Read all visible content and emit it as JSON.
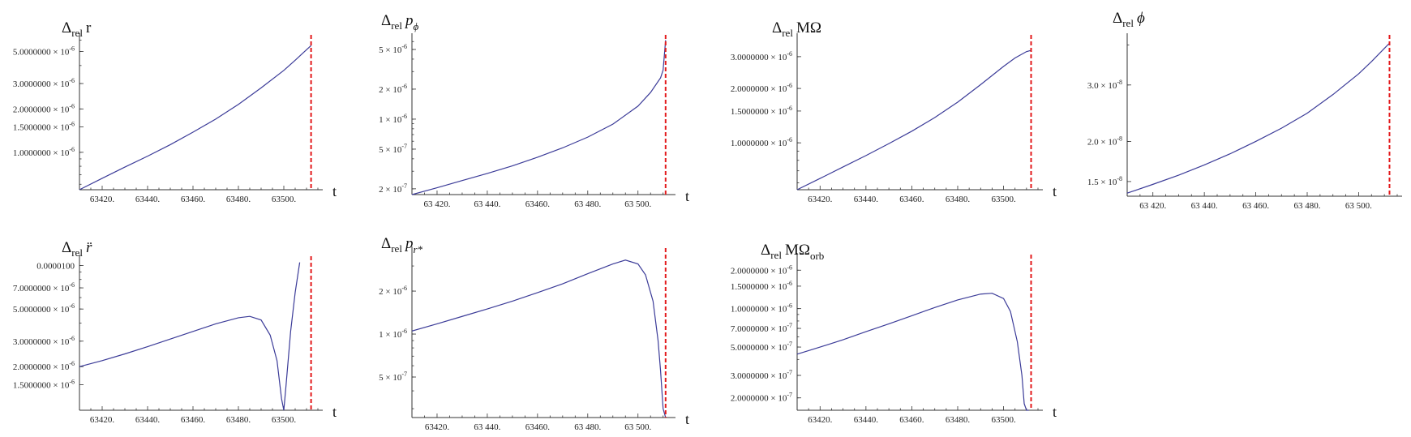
{
  "figure": {
    "description": "relative difference panels vs time"
  },
  "colors": {
    "curve": "#3b3b98",
    "separatrix": "#e31a1c",
    "axis": "#333333"
  },
  "chart_data": [
    {
      "id": "r",
      "type": "line",
      "scale": "log",
      "title": {
        "prefix": "Δ",
        "sub": "rel",
        "var": "r",
        "var_italic": false,
        "var_sub": ""
      },
      "xlabel": "t",
      "xlim": [
        63410,
        63515
      ],
      "vline_x": 63512,
      "ylim": [
        5.5e-07,
        6.2e-06
      ],
      "x_ticks": [
        63420,
        63440,
        63460,
        63480,
        63500
      ],
      "x_tick_labels": [
        "63420.",
        "63440.",
        "63460.",
        "63480.",
        "63500."
      ],
      "y_ticks": [
        {
          "v": 1e-06,
          "mant": "1.0000000",
          "exp": "-6"
        },
        {
          "v": 1.5e-06,
          "mant": "1.5000000",
          "exp": "-6"
        },
        {
          "v": 2e-06,
          "mant": "2.0000000",
          "exp": "-6"
        },
        {
          "v": 3e-06,
          "mant": "3.0000000",
          "exp": "-6"
        },
        {
          "v": 5e-06,
          "mant": "5.0000000",
          "exp": "-6"
        }
      ],
      "series": [
        {
          "name": "Δrel r",
          "x": [
            63410,
            63420,
            63430,
            63440,
            63450,
            63460,
            63470,
            63480,
            63490,
            63500,
            63505,
            63510,
            63512
          ],
          "y": [
            5.5e-07,
            6.6e-07,
            7.9e-07,
            9.4e-07,
            1.13e-06,
            1.38e-06,
            1.7e-06,
            2.15e-06,
            2.8e-06,
            3.7e-06,
            4.35e-06,
            5.15e-06,
            5.5e-06
          ]
        }
      ]
    },
    {
      "id": "pphi",
      "type": "line",
      "scale": "log",
      "title": {
        "prefix": "Δ",
        "sub": "rel",
        "var": "p",
        "var_italic": true,
        "var_sub": "ϕ"
      },
      "xlabel": "t",
      "xlim": [
        63410,
        63513
      ],
      "vline_x": 63511,
      "ylim": [
        1.75e-07,
        6.5e-06
      ],
      "x_ticks": [
        63420,
        63440,
        63460,
        63480,
        63500
      ],
      "x_tick_labels": [
        "63 420.",
        "63 440.",
        "63460.",
        "63 480.",
        "63 500."
      ],
      "y_ticks": [
        {
          "v": 2e-07,
          "mant": "2",
          "exp": "-7"
        },
        {
          "v": 5e-07,
          "mant": "5",
          "exp": "-7"
        },
        {
          "v": 1e-06,
          "mant": "1",
          "exp": "-6"
        },
        {
          "v": 2e-06,
          "mant": "2",
          "exp": "-6"
        },
        {
          "v": 5e-06,
          "mant": "5",
          "exp": "-6"
        }
      ],
      "series": [
        {
          "name": "Δrel pϕ",
          "x": [
            63410,
            63420,
            63430,
            63440,
            63450,
            63460,
            63470,
            63480,
            63490,
            63500,
            63505,
            63509,
            63510,
            63511
          ],
          "y": [
            1.75e-07,
            2.05e-07,
            2.42e-07,
            2.85e-07,
            3.4e-07,
            4.15e-07,
            5.15e-07,
            6.6e-07,
            8.9e-07,
            1.35e-06,
            1.85e-06,
            2.6e-06,
            3.1e-06,
            6.2e-06
          ]
        }
      ]
    },
    {
      "id": "momega",
      "type": "line",
      "scale": "log",
      "title": {
        "prefix": "Δ",
        "sub": "rel",
        "var": "MΩ",
        "var_italic": false,
        "var_sub": ""
      },
      "xlabel": "t",
      "xlim": [
        63410,
        63515
      ],
      "vline_x": 63512,
      "ylim": [
        5.5e-07,
        3.8e-06
      ],
      "x_ticks": [
        63420,
        63440,
        63460,
        63480,
        63500
      ],
      "x_tick_labels": [
        "63420.",
        "63440.",
        "63460.",
        "63480.",
        "63500."
      ],
      "y_ticks": [
        {
          "v": 1e-06,
          "mant": "1.0000000",
          "exp": "-6"
        },
        {
          "v": 1.5e-06,
          "mant": "1.5000000",
          "exp": "-6"
        },
        {
          "v": 2e-06,
          "mant": "2.0000000",
          "exp": "-6"
        },
        {
          "v": 3e-06,
          "mant": "3.0000000",
          "exp": "-6"
        }
      ],
      "series": [
        {
          "name": "Δrel MΩ",
          "x": [
            63410,
            63420,
            63430,
            63440,
            63450,
            63460,
            63470,
            63480,
            63490,
            63500,
            63505,
            63510,
            63512
          ],
          "y": [
            5.5e-07,
            6.35e-07,
            7.35e-07,
            8.5e-07,
            9.9e-07,
            1.16e-06,
            1.38e-06,
            1.68e-06,
            2.1e-06,
            2.65e-06,
            2.95e-06,
            3.2e-06,
            3.25e-06
          ]
        }
      ]
    },
    {
      "id": "phi",
      "type": "line",
      "scale": "log",
      "title": {
        "prefix": "Δ",
        "sub": "rel",
        "var": "ϕ",
        "var_italic": true,
        "var_sub": ""
      },
      "xlabel": "t",
      "xlim": [
        63410,
        63515
      ],
      "vline_x": 63512,
      "ylim": [
        1.35e-08,
        4.2e-08
      ],
      "x_ticks": [
        63420,
        63440,
        63460,
        63480,
        63500
      ],
      "x_tick_labels": [
        "63 420.",
        "63 440.",
        "63 460.",
        "63 480.",
        "63 500."
      ],
      "y_ticks": [
        {
          "v": 1.5e-08,
          "mant": "1.5",
          "exp": "-8"
        },
        {
          "v": 2e-08,
          "mant": "2.0",
          "exp": "-8"
        },
        {
          "v": 3e-08,
          "mant": "3.0",
          "exp": "-8"
        }
      ],
      "series": [
        {
          "name": "Δrel ϕ",
          "x": [
            63410,
            63420,
            63430,
            63440,
            63450,
            63460,
            63470,
            63480,
            63490,
            63500,
            63505,
            63510,
            63512
          ],
          "y": [
            1.38e-08,
            1.47e-08,
            1.57e-08,
            1.69e-08,
            1.83e-08,
            2e-08,
            2.2e-08,
            2.45e-08,
            2.8e-08,
            3.25e-08,
            3.55e-08,
            3.9e-08,
            4.05e-08
          ]
        }
      ]
    },
    {
      "id": "rddot",
      "type": "line",
      "scale": "log",
      "title": {
        "prefix": "Δ",
        "sub": "rel",
        "var": "r̈",
        "var_italic": true,
        "var_sub": ""
      },
      "xlabel": "t",
      "xlim": [
        63410,
        63515
      ],
      "vline_x": 63512,
      "ylim": [
        1e-06,
        1.1e-05
      ],
      "x_ticks": [
        63420,
        63440,
        63460,
        63480,
        63500
      ],
      "x_tick_labels": [
        "63420.",
        "63440.",
        "63460.",
        "63480.",
        "63500."
      ],
      "y_ticks": [
        {
          "v": 1.5e-06,
          "mant": "1.5000000",
          "exp": "-6"
        },
        {
          "v": 2e-06,
          "mant": "2.0000000",
          "exp": "-6"
        },
        {
          "v": 3e-06,
          "mant": "3.0000000",
          "exp": "-6"
        },
        {
          "v": 5e-06,
          "mant": "5.0000000",
          "exp": "-6"
        },
        {
          "v": 7e-06,
          "mant": "7.0000000",
          "exp": "-6"
        },
        {
          "v": 1e-05,
          "mant": "0.0000100",
          "exp": ""
        }
      ],
      "series": [
        {
          "name": "Δrel r̈",
          "x": [
            63410,
            63420,
            63430,
            63440,
            63450,
            63460,
            63470,
            63480,
            63485,
            63490,
            63494,
            63497,
            63499,
            63500,
            63501,
            63503,
            63505,
            63507
          ],
          "y": [
            2e-06,
            2.2e-06,
            2.45e-06,
            2.75e-06,
            3.1e-06,
            3.5e-06,
            3.95e-06,
            4.35e-06,
            4.45e-06,
            4.2e-06,
            3.3e-06,
            2.2e-06,
            1.2e-06,
            1e-06,
            1.5e-06,
            3.5e-06,
            6.5e-06,
            1.05e-05
          ]
        }
      ]
    },
    {
      "id": "prstar",
      "type": "line",
      "scale": "log",
      "title": {
        "prefix": "Δ",
        "sub": "rel",
        "var": "p",
        "var_italic": true,
        "var_sub": "r*"
      },
      "xlabel": "t",
      "xlim": [
        63410,
        63513
      ],
      "vline_x": 63511,
      "ylim": [
        2.6e-07,
        3.8e-06
      ],
      "x_ticks": [
        63420,
        63440,
        63460,
        63480,
        63500
      ],
      "x_tick_labels": [
        "63420.",
        "63 440.",
        "63460.",
        "63 480.",
        "63 500."
      ],
      "y_ticks": [
        {
          "v": 5e-07,
          "mant": "5",
          "exp": "-7"
        },
        {
          "v": 1e-06,
          "mant": "1",
          "exp": "-6"
        },
        {
          "v": 2e-06,
          "mant": "2",
          "exp": "-6"
        }
      ],
      "series": [
        {
          "name": "Δrel pr*",
          "x": [
            63410,
            63420,
            63430,
            63440,
            63450,
            63460,
            63470,
            63480,
            63490,
            63495,
            63500,
            63503,
            63506,
            63508,
            63509,
            63510,
            63511
          ],
          "y": [
            1.05e-06,
            1.18e-06,
            1.33e-06,
            1.5e-06,
            1.7e-06,
            1.95e-06,
            2.25e-06,
            2.65e-06,
            3.1e-06,
            3.3e-06,
            3.1e-06,
            2.6e-06,
            1.7e-06,
            9e-07,
            5.5e-07,
            3e-07,
            2.6e-07
          ]
        }
      ]
    },
    {
      "id": "momegaorb",
      "type": "line",
      "scale": "log",
      "title": {
        "prefix": "Δ",
        "sub": "rel",
        "var": "MΩ",
        "var_italic": false,
        "var_sub": "orb"
      },
      "xlabel": "t",
      "xlim": [
        63410,
        63515
      ],
      "vline_x": 63512,
      "ylim": [
        1.6e-07,
        2.5e-06
      ],
      "x_ticks": [
        63420,
        63440,
        63460,
        63480,
        63500
      ],
      "x_tick_labels": [
        "63420.",
        "63440.",
        "63460.",
        "63480.",
        "63500."
      ],
      "y_ticks": [
        {
          "v": 2e-07,
          "mant": "2.0000000",
          "exp": "-7"
        },
        {
          "v": 3e-07,
          "mant": "3.0000000",
          "exp": "-7"
        },
        {
          "v": 5e-07,
          "mant": "5.0000000",
          "exp": "-7"
        },
        {
          "v": 7e-07,
          "mant": "7.0000000",
          "exp": "-7"
        },
        {
          "v": 1e-06,
          "mant": "1.0000000",
          "exp": "-6"
        },
        {
          "v": 1.5e-06,
          "mant": "1.5000000",
          "exp": "-6"
        },
        {
          "v": 2e-06,
          "mant": "2.0000000",
          "exp": "-6"
        }
      ],
      "series": [
        {
          "name": "Δrel MΩorb",
          "x": [
            63410,
            63420,
            63430,
            63440,
            63450,
            63460,
            63470,
            63480,
            63490,
            63495,
            63500,
            63503,
            63506,
            63508,
            63509,
            63510,
            63511
          ],
          "y": [
            4.4e-07,
            5e-07,
            5.7e-07,
            6.6e-07,
            7.6e-07,
            8.8e-07,
            1.02e-06,
            1.17e-06,
            1.3e-06,
            1.32e-06,
            1.2e-06,
            9.5e-07,
            5.5e-07,
            3e-07,
            1.8e-07,
            1.6e-07,
            1.6e-07
          ]
        }
      ]
    }
  ]
}
